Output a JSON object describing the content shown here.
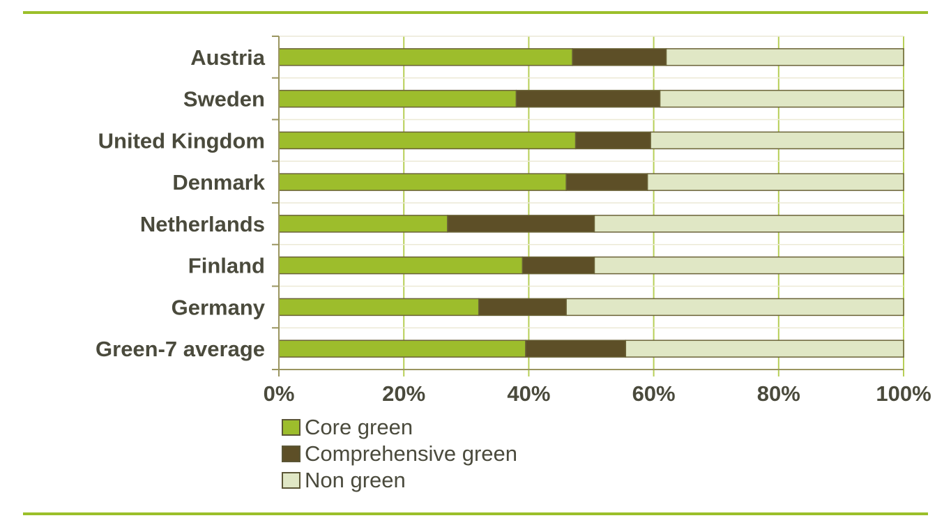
{
  "chart_data": {
    "type": "bar",
    "orientation": "horizontal",
    "stacked": "percent",
    "categories": [
      "Austria",
      "Sweden",
      "United Kingdom",
      "Denmark",
      "Netherlands",
      "Finland",
      "Germany",
      "Green-7 average"
    ],
    "series": [
      {
        "name": "Core green",
        "color": "#9dbd2c",
        "values": [
          47,
          38,
          47.5,
          46,
          27,
          39,
          32,
          39.5
        ]
      },
      {
        "name": "Comprehensive green",
        "color": "#5d4f27",
        "values": [
          15,
          23,
          12,
          13,
          23.5,
          11.5,
          14,
          16
        ]
      },
      {
        "name": "Non green",
        "color": "#e0e7c5",
        "values": [
          38,
          39,
          40.5,
          41,
          49.5,
          49.5,
          54,
          44.5
        ]
      }
    ],
    "xlim": [
      0,
      100
    ],
    "xticks": [
      "0%",
      "20%",
      "40%",
      "60%",
      "80%",
      "100%"
    ],
    "grid": true,
    "legend_position": "bottom-left",
    "title": "",
    "xlabel": "",
    "ylabel": ""
  }
}
